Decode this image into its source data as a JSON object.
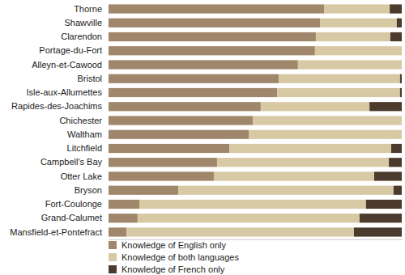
{
  "chart_data": {
    "type": "bar",
    "orientation": "horizontal",
    "stacked": true,
    "tick_labels": "y",
    "legend": "bottom-left",
    "categories": [
      "Thorne",
      "Shawville",
      "Clarendon",
      "Portage-du-Fort",
      "Alleyn-et-Cawood",
      "Bristol",
      "Isle-aux-Allumettes",
      "Rapides-des-Joachims",
      "Chichester",
      "Waltham",
      "Litchfield",
      "Campbell's Bay",
      "Otter Lake",
      "Bryson",
      "Fort-Coulonge",
      "Grand-Calumet",
      "Mansfield-et-Pontefract"
    ],
    "xlim": [
      0,
      100
    ],
    "series": [
      {
        "name": "Knowledge of English only",
        "color": "#a0866a",
        "values": [
          73.5,
          72.1,
          70.7,
          70.4,
          64.6,
          58.0,
          57.5,
          51.9,
          49.2,
          47.8,
          41.2,
          37.0,
          35.9,
          23.8,
          10.5,
          9.9,
          6.1
        ]
      },
      {
        "name": "Knowledge of both languages",
        "color": "#d8c9a5",
        "values": [
          22.4,
          26.2,
          25.4,
          29.6,
          35.4,
          41.4,
          41.9,
          37.1,
          50.8,
          52.2,
          55.2,
          58.6,
          54.7,
          73.4,
          77.3,
          75.7,
          77.6
        ]
      },
      {
        "name": "Knowledge of French only",
        "color": "#4b3b2c",
        "values": [
          4.1,
          1.7,
          3.9,
          0,
          0,
          0.6,
          0.6,
          11.0,
          0,
          0,
          3.6,
          4.4,
          9.4,
          2.8,
          12.2,
          14.4,
          16.3
        ]
      }
    ]
  }
}
